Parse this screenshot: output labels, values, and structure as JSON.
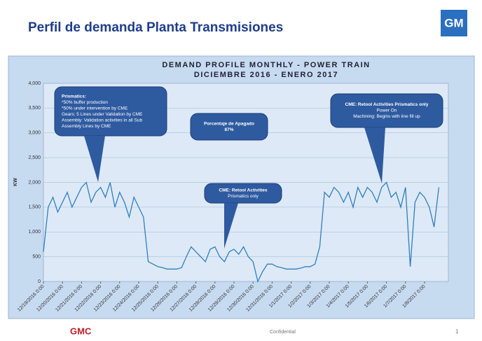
{
  "slide": {
    "title": "Perfil de demanda Planta Transmisiones",
    "logo": "GM",
    "brand": "GMC",
    "footer": "Confidential",
    "page": "1"
  },
  "chart_data": {
    "type": "line",
    "title": [
      "DEMAND PROFILE MONTHLY -   POWER TRAIN",
      "DICIEMBRE  2016 - ENERO 2017"
    ],
    "y_label": "KW",
    "color": "#2f7fc0",
    "grid": true,
    "ylim": [
      0,
      4000
    ],
    "yticks": [
      0,
      {
        "value": 500,
        "label": "500"
      },
      {
        "value": 1000,
        "label": "1,000"
      },
      {
        "value": 1500,
        "label": "1,500"
      },
      {
        "value": 2000,
        "label": "2,000"
      },
      {
        "value": 2500,
        "label": "2,500"
      },
      {
        "value": 3000,
        "label": "3,000"
      },
      {
        "value": 3500,
        "label": "3,500"
      },
      {
        "value": 4000,
        "label": "4,000"
      }
    ],
    "xticks": [
      "12/19/2016 0:00",
      "12/20/2016 0:00",
      "12/21/2016 0:00",
      "12/22/2016 0:00",
      "12/23/2016 0:00",
      "12/24/2016 0:00",
      "12/25/2016 0:00",
      "12/26/2016 0:00",
      "12/27/2016 0:00",
      "12/28/2016 0:00",
      "12/29/2016 0:00",
      "12/30/2016 0:00",
      "12/31/2016 0:00",
      "1/1/2017 0:00",
      "1/2/2017 0:00",
      "1/3/2017 0:00",
      "1/4/2017 0:00",
      "1/5/2017 0:00",
      "1/6/2017 0:00",
      "1/7/2017 0:00",
      "1/8/2017 0:00"
    ],
    "x": [
      "12/19/2016 0:00",
      "12/19/2016 6:00",
      "12/19/2016 12:00",
      "12/19/2016 18:00",
      "12/20/2016 0:00",
      "12/20/2016 6:00",
      "12/20/2016 12:00",
      "12/20/2016 18:00",
      "12/21/2016 0:00",
      "12/21/2016 6:00",
      "12/21/2016 12:00",
      "12/21/2016 18:00",
      "12/22/2016 0:00",
      "12/22/2016 6:00",
      "12/22/2016 12:00",
      "12/22/2016 18:00",
      "12/23/2016 0:00",
      "12/23/2016 6:00",
      "12/23/2016 12:00",
      "12/23/2016 18:00",
      "12/24/2016 0:00",
      "12/24/2016 6:00",
      "12/24/2016 12:00",
      "12/24/2016 18:00",
      "12/25/2016 0:00",
      "12/25/2016 6:00",
      "12/25/2016 12:00",
      "12/25/2016 18:00",
      "12/26/2016 0:00",
      "12/26/2016 6:00",
      "12/26/2016 12:00",
      "12/26/2016 18:00",
      "12/27/2016 0:00",
      "12/27/2016 6:00",
      "12/27/2016 12:00",
      "12/27/2016 18:00",
      "12/28/2016 0:00",
      "12/28/2016 6:00",
      "12/28/2016 12:00",
      "12/28/2016 18:00",
      "12/29/2016 0:00",
      "12/29/2016 6:00",
      "12/29/2016 12:00",
      "12/29/2016 18:00",
      "12/30/2016 0:00",
      "12/30/2016 6:00",
      "12/30/2016 12:00",
      "12/30/2016 18:00",
      "12/31/2016 0:00",
      "12/31/2016 6:00",
      "12/31/2016 12:00",
      "12/31/2016 18:00",
      "1/1/2017 0:00",
      "1/1/2017 6:00",
      "1/1/2017 12:00",
      "1/1/2017 18:00",
      "1/2/2017 0:00",
      "1/2/2017 6:00",
      "1/2/2017 12:00",
      "1/2/2017 18:00",
      "1/3/2017 0:00",
      "1/3/2017 6:00",
      "1/3/2017 12:00",
      "1/3/2017 18:00",
      "1/4/2017 0:00",
      "1/4/2017 6:00",
      "1/4/2017 12:00",
      "1/4/2017 18:00",
      "1/5/2017 0:00",
      "1/5/2017 6:00",
      "1/5/2017 12:00",
      "1/5/2017 18:00",
      "1/6/2017 0:00",
      "1/6/2017 6:00",
      "1/6/2017 12:00",
      "1/6/2017 18:00",
      "1/7/2017 0:00",
      "1/7/2017 6:00",
      "1/7/2017 12:00",
      "1/7/2017 18:00",
      "1/8/2017 0:00",
      "1/8/2017 6:00",
      "1/8/2017 12:00",
      "1/8/2017 18:00"
    ],
    "values": [
      600,
      1500,
      1700,
      1400,
      1600,
      1800,
      1500,
      1700,
      1900,
      2000,
      1600,
      1800,
      1900,
      1700,
      2000,
      1500,
      1800,
      1600,
      1300,
      1700,
      1500,
      1300,
      400,
      350,
      300,
      280,
      250,
      250,
      250,
      280,
      500,
      700,
      600,
      500,
      400,
      650,
      700,
      500,
      400,
      600,
      650,
      550,
      700,
      500,
      400,
      0,
      200,
      350,
      350,
      300,
      280,
      250,
      250,
      250,
      270,
      300,
      300,
      350,
      700,
      1800,
      1700,
      1900,
      1800,
      1600,
      1800,
      1500,
      1900,
      1700,
      1900,
      1800,
      1600,
      1900,
      2000,
      1700,
      1800,
      1500,
      1900,
      300,
      1600,
      1800,
      1700,
      1500,
      1100,
      1900
    ],
    "annotations": [
      {
        "lines": [
          "Prismatics:",
          "*50%  buffer production",
          "*50% under intervention by CME",
          "Gears: 5 Lines under Validation by CME",
          "Assembly: Validation activities in all Sub",
          "Assembly Lines by CME"
        ]
      },
      {
        "lines": [
          "Porcentaje de Apagado",
          "87%"
        ]
      },
      {
        "lines": [
          "CME: Retool Activities",
          "Prismatics only"
        ]
      },
      {
        "lines": [
          "CME: Retool Activities Prismatics only",
          "Power On",
          "Machining: Begins with line fill up"
        ]
      }
    ]
  }
}
